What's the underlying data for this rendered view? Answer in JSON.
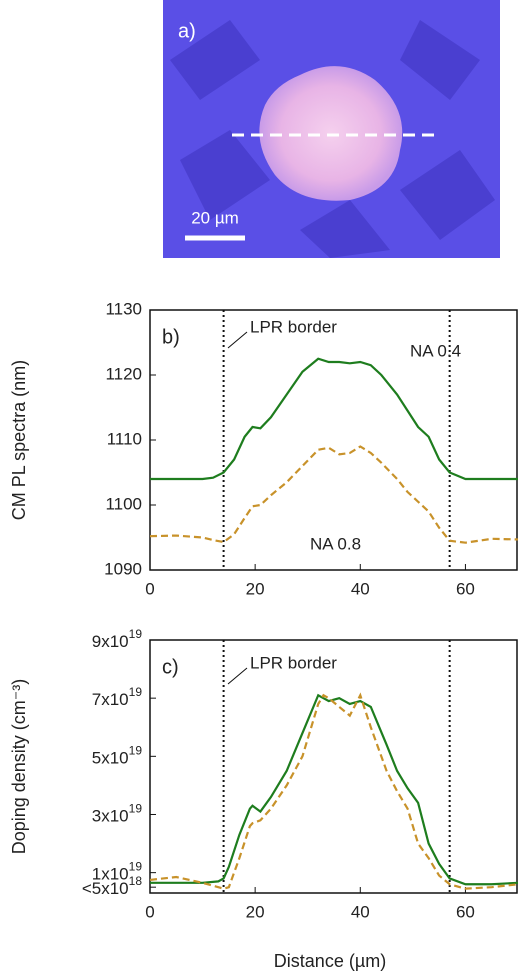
{
  "image_panel": {
    "label": "a)",
    "scale_bar": "20 µm"
  },
  "chart_data": [
    {
      "type": "line",
      "panel_label": "b)",
      "ylabel": "CM PL spectra (nm)",
      "annotations": [
        "LPR border",
        "NA 0.4",
        "NA 0.8"
      ],
      "vlines": [
        14,
        57
      ],
      "xlim": [
        0,
        70
      ],
      "xticks": [
        0,
        20,
        40,
        60
      ],
      "ylim": [
        1090,
        1130
      ],
      "yticks": [
        1090,
        1100,
        1110,
        1120,
        1130
      ],
      "x": [
        0,
        5,
        10,
        12,
        14,
        16,
        18,
        19.5,
        21,
        23,
        26,
        29,
        32,
        34,
        36,
        38,
        40,
        42,
        44,
        47,
        49,
        51,
        53,
        55,
        57,
        60,
        65,
        70
      ],
      "series": [
        {
          "name": "NA 0.4",
          "color": "#1e7d1e",
          "dash": false,
          "values": [
            1104,
            1104,
            1104,
            1104.2,
            1105,
            1107,
            1110.5,
            1112,
            1111.8,
            1113.5,
            1117,
            1120.5,
            1122.5,
            1122,
            1122,
            1121.8,
            1122,
            1121.5,
            1120,
            1117,
            1114.5,
            1112,
            1110.5,
            1107,
            1105,
            1104,
            1104,
            1104
          ]
        },
        {
          "name": "NA 0.8",
          "color": "#c8922a",
          "dash": true,
          "values": [
            1095.2,
            1095.3,
            1095,
            1094.6,
            1094.3,
            1095.5,
            1098,
            1099.8,
            1100,
            1101.5,
            1103.5,
            1106,
            1108.5,
            1108.8,
            1107.8,
            1108,
            1109,
            1108,
            1106.5,
            1104,
            1102,
            1100.5,
            1099,
            1096.5,
            1094.5,
            1094.2,
            1094.8,
            1094.7
          ]
        }
      ]
    },
    {
      "type": "line",
      "panel_label": "c)",
      "ylabel": "Doping density (cm⁻³)",
      "xlabel": "Distance (µm)",
      "annotations": [
        "LPR border"
      ],
      "vlines": [
        14,
        57
      ],
      "xlim": [
        0,
        70
      ],
      "xticks": [
        0,
        20,
        40,
        60
      ],
      "ylim": [
        3e+18,
        9e+19
      ],
      "yticks": [
        {
          "value": 9e+19,
          "label": "9x10",
          "exponent": "19"
        },
        {
          "value": 7e+19,
          "label": "7x10",
          "exponent": "19"
        },
        {
          "value": 5e+19,
          "label": "5x10",
          "exponent": "19"
        },
        {
          "value": 3e+19,
          "label": "3x10",
          "exponent": "19"
        },
        {
          "value": 1e+19,
          "label": "1x10",
          "exponent": "19"
        },
        {
          "value": 5e+18,
          "label": "<5x10",
          "exponent": "18"
        }
      ],
      "x": [
        0,
        5,
        10,
        13,
        14,
        15,
        17,
        19,
        19.5,
        21,
        23,
        26,
        29,
        32,
        33,
        34,
        36,
        38,
        40,
        42,
        45,
        47,
        49,
        51,
        53,
        55,
        57,
        60,
        65,
        70
      ],
      "series": [
        {
          "name": "NA 0.4",
          "color": "#1e7d1e",
          "dash": false,
          "values": [
            6.5e+18,
            6.5e+18,
            6.5e+18,
            7e+18,
            8e+18,
            1.2e+19,
            2.3e+19,
            3.2e+19,
            3.3e+19,
            3.1e+19,
            3.6e+19,
            4.5e+19,
            5.8e+19,
            7.1e+19,
            7e+19,
            6.9e+19,
            7e+19,
            6.8e+19,
            6.9e+19,
            6.7e+19,
            5.4e+19,
            4.5e+19,
            3.9e+19,
            3.4e+19,
            2e+19,
            1.3e+19,
            8e+18,
            6e+18,
            6e+18,
            6.5e+18
          ]
        },
        {
          "name": "NA 0.8",
          "color": "#c8922a",
          "dash": true,
          "values": [
            7.5e+18,
            8.5e+18,
            6.5e+18,
            5e+18,
            4.5e+18,
            5e+18,
            1.5e+19,
            2.6e+19,
            2.7e+19,
            2.8e+19,
            3.2e+19,
            4e+19,
            5e+19,
            6.8e+19,
            7.1e+19,
            7e+19,
            6.7e+19,
            6.4e+19,
            7.1e+19,
            6e+19,
            4.5e+19,
            3.8e+19,
            3.2e+19,
            2e+19,
            1.5e+19,
            9e+18,
            6e+18,
            4.5e+18,
            5e+18,
            6e+18
          ]
        }
      ]
    }
  ]
}
